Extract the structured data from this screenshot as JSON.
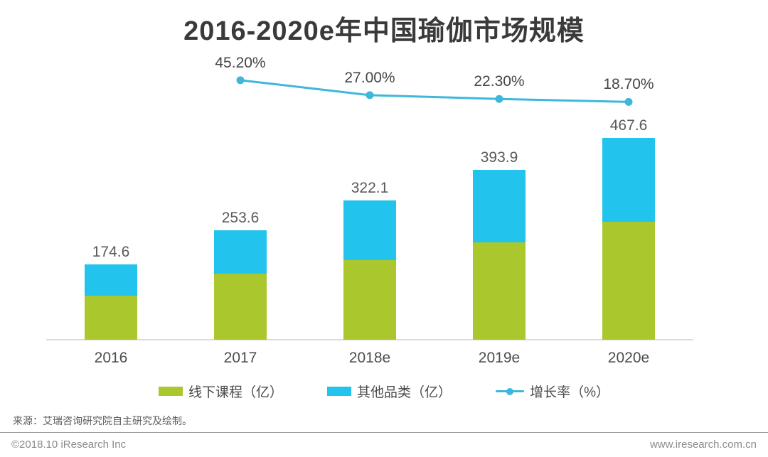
{
  "title": "2016-2020e年中国瑜伽市场规模",
  "chart_data": {
    "type": "bar",
    "subtype": "stacked-bars-with-growth-line",
    "title": "2016-2020e年中国瑜伽市场规模",
    "categories": [
      "2016",
      "2017",
      "2018e",
      "2019e",
      "2020e"
    ],
    "series": [
      {
        "name": "线下课程（亿）",
        "color": "#aac72e",
        "values": [
          102.0,
          153.0,
          184.0,
          226.0,
          274.0
        ]
      },
      {
        "name": "其他品类（亿）",
        "color": "#22c3ec",
        "values": [
          72.6,
          100.6,
          138.1,
          167.9,
          193.6
        ]
      }
    ],
    "totals": {
      "values": [
        174.6,
        253.6,
        322.1,
        393.9,
        467.6
      ],
      "labels": [
        "174.6",
        "253.6",
        "322.1",
        "393.9",
        "467.6"
      ]
    },
    "growth_line": {
      "name": "增长率（%）",
      "color": "#3eb7dc",
      "values": [
        null,
        45.2,
        27.0,
        22.3,
        18.7
      ],
      "labels": [
        null,
        "45.20%",
        "27.00%",
        "22.30%",
        "18.70%"
      ]
    },
    "unit": "亿",
    "grid": false,
    "legend_position": "bottom",
    "ylim": [
      0,
      500
    ]
  },
  "source_note": "来源：艾瑞咨询研究院自主研究及绘制。",
  "footer": {
    "left": "©2018.10 iResearch Inc",
    "right": "www.iresearch.com.cn"
  }
}
